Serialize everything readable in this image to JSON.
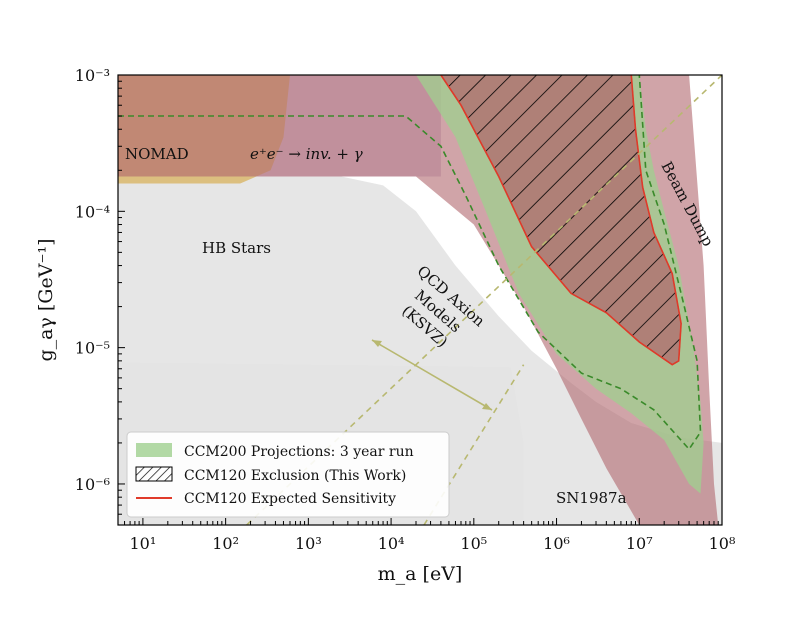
{
  "chart_data": {
    "type": "area",
    "title": "",
    "xlabel": "m_a [eV]",
    "ylabel": "g_aγ [GeV⁻¹]",
    "x_scale": "log",
    "y_scale": "log",
    "xlim": [
      5,
      100000000
    ],
    "ylim": [
      5e-07,
      0.001
    ],
    "x_ticks": [
      {
        "value": 10,
        "label": "10¹"
      },
      {
        "value": 100,
        "label": "10²"
      },
      {
        "value": 1000,
        "label": "10³"
      },
      {
        "value": 10000,
        "label": "10⁴"
      },
      {
        "value": 100000,
        "label": "10⁵"
      },
      {
        "value": 1000000,
        "label": "10⁶"
      },
      {
        "value": 10000000,
        "label": "10⁷"
      },
      {
        "value": 100000000,
        "label": "10⁸"
      }
    ],
    "y_ticks": [
      {
        "value": 0.001,
        "label": "10⁻³"
      },
      {
        "value": 0.0001,
        "label": "10⁻⁴"
      },
      {
        "value": 1e-05,
        "label": "10⁻⁵"
      },
      {
        "value": 1e-06,
        "label": "10⁻⁶"
      }
    ],
    "grid": false,
    "legend": {
      "placement": "lower-left",
      "entries": [
        {
          "label": "CCM200 Projections: 3 year run",
          "style": "fill",
          "color": "#9fd08f"
        },
        {
          "label": "CCM120 Exclusion (This Work)",
          "style": "hatch",
          "color": "#000000"
        },
        {
          "label": "CCM120 Expected Sensitivity",
          "style": "line",
          "color": "#e03a2a"
        }
      ]
    },
    "region_labels": [
      "NOMAD",
      "e⁺e⁻ → inv. + γ",
      "HB Stars",
      "Beam Dump",
      "SN1987a"
    ],
    "annotation": {
      "lines": [
        "QCD Axion",
        "Models",
        "(KSVZ)"
      ],
      "color": "#6b6b00"
    },
    "regions": [
      {
        "name": "SN1987a",
        "color": "#d9d9d9",
        "alpha": 0.7,
        "points": [
          [
            5,
            7.8e-06
          ],
          [
            280000,
            7.2e-06
          ],
          [
            400000,
            2e-06
          ],
          [
            400000,
            5e-07
          ],
          [
            5,
            5e-07
          ]
        ]
      },
      {
        "name": "HB Stars",
        "color": "#e3e3e3",
        "alpha": 0.9,
        "points": [
          [
            5,
            0.00018
          ],
          [
            2500,
            0.00018
          ],
          [
            8000,
            0.000155
          ],
          [
            20000,
            0.0001
          ],
          [
            60000,
            4e-05
          ],
          [
            200000,
            1.7e-05
          ],
          [
            500000,
            9.5e-06
          ],
          [
            1500000,
            5.5e-06
          ],
          [
            3000000,
            4e-06
          ],
          [
            8000000,
            2.8e-06
          ],
          [
            30000000,
            2.2e-06
          ],
          [
            100000000,
            2e-06
          ],
          [
            100000000,
            5e-07
          ],
          [
            5,
            5e-07
          ]
        ]
      },
      {
        "name": "e+e- to inv. + gamma",
        "color": "#b9a5c9",
        "alpha": 0.55,
        "points": [
          [
            300,
            0.001
          ],
          [
            40000,
            0.001
          ],
          [
            40000,
            0.00018
          ],
          [
            5,
            0.00018
          ],
          [
            5,
            0.001
          ]
        ]
      },
      {
        "name": "NOMAD",
        "color": "#d8b25c",
        "alpha": 0.75,
        "points": [
          [
            5,
            0.001
          ],
          [
            600,
            0.001
          ],
          [
            500,
            0.00035
          ],
          [
            350,
            0.0002
          ],
          [
            150,
            0.00016
          ],
          [
            5,
            0.00016
          ]
        ]
      },
      {
        "name": "Beam Dump",
        "color": "#b0686e",
        "alpha": 0.6,
        "points": [
          [
            5,
            0.001
          ],
          [
            40000000,
            0.001
          ],
          [
            60000000,
            4e-05
          ],
          [
            70000000,
            5e-06
          ],
          [
            80000000,
            1e-06
          ],
          [
            90000000,
            5e-07
          ],
          [
            10000000,
            5e-07
          ],
          [
            4000000,
            1.3e-06
          ],
          [
            2000000,
            3e-06
          ],
          [
            1000000,
            7e-06
          ],
          [
            400000,
            2e-05
          ],
          [
            100000,
            8e-05
          ],
          [
            20000,
            0.00018
          ],
          [
            5,
            0.00018
          ]
        ]
      },
      {
        "name": "CCM200 Projections: 3 year run",
        "color": "#9fd08f",
        "alpha": 0.75,
        "points": [
          [
            5,
            0.001
          ],
          [
            20000,
            0.001
          ],
          [
            60000,
            0.00035
          ],
          [
            150000,
            9e-05
          ],
          [
            350000,
            2.5e-05
          ],
          [
            1000000,
            9e-06
          ],
          [
            3000000,
            5e-06
          ],
          [
            8000000,
            3.3e-06
          ],
          [
            20000000,
            2.1e-06
          ],
          [
            40000000,
            1e-06
          ],
          [
            55000000,
            8.5e-07
          ],
          [
            60000000,
            2e-06
          ],
          [
            55000000,
            4e-06
          ],
          [
            45000000,
            1e-05
          ],
          [
            30000000,
            4e-05
          ],
          [
            20000000,
            0.0001
          ],
          [
            15000000,
            0.0002
          ],
          [
            12000000,
            0.0004
          ],
          [
            10000000,
            0.001
          ]
        ]
      },
      {
        "name": "CCM120 Exclusion (This Work)",
        "color": "#b0686e",
        "alpha": 0.75,
        "hatch": true,
        "points": [
          [
            40000,
            0.001
          ],
          [
            70000,
            0.0006
          ],
          [
            200000,
            0.00018
          ],
          [
            500000,
            5.5e-05
          ],
          [
            1500000,
            2.5e-05
          ],
          [
            4000000,
            1.8e-05
          ],
          [
            10000000,
            1.1e-05
          ],
          [
            25000000,
            7.5e-06
          ],
          [
            30000000,
            8e-06
          ],
          [
            32000000,
            1.5e-05
          ],
          [
            25000000,
            3.5e-05
          ],
          [
            15000000,
            7e-05
          ],
          [
            11000000,
            0.00015
          ],
          [
            9000000,
            0.0004
          ],
          [
            8000000,
            0.001
          ]
        ]
      }
    ],
    "lines": [
      {
        "name": "CCM120 Expected Sensitivity",
        "color": "#e03a2a",
        "dash": "none",
        "points": [
          [
            40000,
            0.001
          ],
          [
            70000,
            0.0006
          ],
          [
            200000,
            0.00018
          ],
          [
            500000,
            5.5e-05
          ],
          [
            1500000,
            2.5e-05
          ],
          [
            4000000,
            1.8e-05
          ],
          [
            10000000,
            1.1e-05
          ],
          [
            25000000,
            7.5e-06
          ],
          [
            30000000,
            8e-06
          ],
          [
            32000000,
            1.5e-05
          ],
          [
            25000000,
            3.5e-05
          ],
          [
            15000000,
            7e-05
          ],
          [
            11000000,
            0.00015
          ],
          [
            9000000,
            0.0004
          ],
          [
            8000000,
            0.001
          ]
        ]
      },
      {
        "name": "CCM200 dashed contour",
        "color": "#3a8a2a",
        "dash": "6,4",
        "points": [
          [
            5,
            0.0005
          ],
          [
            15000,
            0.0005
          ],
          [
            40000,
            0.0003
          ],
          [
            80000,
            0.00013
          ],
          [
            200000,
            4e-05
          ],
          [
            600000,
            1.3e-05
          ],
          [
            2000000,
            6.5e-06
          ],
          [
            6000000,
            5e-06
          ],
          [
            15000000,
            3.5e-06
          ],
          [
            40000000,
            1.8e-06
          ],
          [
            55000000,
            2.4e-06
          ],
          [
            50000000,
            8e-06
          ],
          [
            35000000,
            2e-05
          ],
          [
            20000000,
            8e-05
          ],
          [
            12000000,
            0.0002
          ],
          [
            10000000,
            0.001
          ]
        ]
      },
      {
        "name": "QCD axion band edge 1",
        "color": "#b8b870",
        "dash": "6,5",
        "points": [
          [
            180,
            5e-07
          ],
          [
            100000000,
            0.001
          ]
        ]
      },
      {
        "name": "QCD axion band edge 2",
        "color": "#b8b870",
        "dash": "6,5",
        "points": [
          [
            25000,
            5e-07
          ],
          [
            400000,
            7.5e-06
          ]
        ]
      }
    ]
  }
}
